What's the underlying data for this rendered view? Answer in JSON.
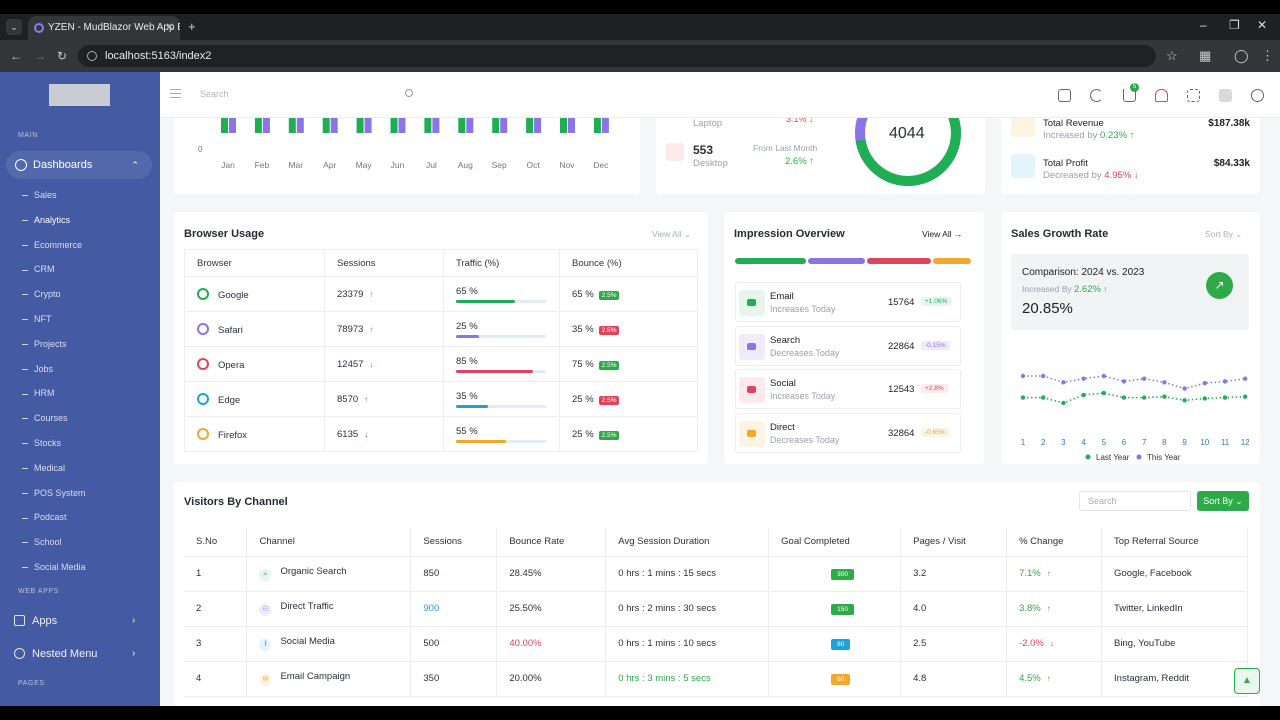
{
  "browser": {
    "tab_title": "YZEN - MudBlazor Web App Bl...",
    "url": "localhost:5163/index2"
  },
  "sidebar": {
    "section_main": "MAIN",
    "dashboards_label": "Dashboards",
    "items": [
      "Sales",
      "Analytics",
      "Ecommerce",
      "CRM",
      "Crypto",
      "NFT",
      "Projects",
      "Jobs",
      "HRM",
      "Courses",
      "Stocks",
      "Medical",
      "POS System",
      "Podcast",
      "School",
      "Social Media"
    ],
    "active_item": "Analytics",
    "section_web_apps": "WEB APPS",
    "apps_label": "Apps",
    "nested_menu_label": "Nested Menu",
    "section_pages": "PAGES"
  },
  "topbar": {
    "search_placeholder": "Search",
    "cart_badge": "5"
  },
  "sessions_chart": {
    "months": [
      "Jan",
      "Feb",
      "Mar",
      "Apr",
      "May",
      "Jun",
      "Jul",
      "Aug",
      "Sep",
      "Oct",
      "Nov",
      "Dec"
    ],
    "zero_label": "0",
    "green_series": [
      0.86,
      0.69,
      0.91,
      0.87,
      0.91,
      0.84,
      0.91,
      0.86,
      0.89,
      0.83,
      0.91,
      0.9
    ],
    "purple_series": [
      0.88,
      0.86,
      0.91,
      0.88,
      0.86,
      0.9,
      0.85,
      0.86,
      0.88,
      0.88,
      0.88,
      0.87
    ],
    "green_color": "#1fae54",
    "purple_color": "#8b74e6"
  },
  "device_card": {
    "laptop_label": "Laptop",
    "laptop_change": "3.1%",
    "desktop_value": "553",
    "desktop_label": "Desktop",
    "from_last_month": "From Last Month",
    "desktop_change": "2.6%",
    "donut_value": "4044"
  },
  "revenue_card": {
    "total_revenue_label": "Total Revenue",
    "total_revenue_sub_prefix": "Increased by",
    "total_revenue_change": "0.23%",
    "total_revenue_value": "$187.38k",
    "total_profit_label": "Total Profit",
    "total_profit_sub_prefix": "Decreased by",
    "total_profit_change": "4.95%",
    "total_profit_value": "$84.33k"
  },
  "browser_usage": {
    "title": "Browser Usage",
    "view_all": "View All",
    "headers": [
      "Browser",
      "Sessions",
      "Traffic (%)",
      "Bounce (%)"
    ],
    "rows": [
      {
        "name": "Google",
        "sessions": "23379",
        "trend": "up",
        "traffic": "65 %",
        "traffic_fill": 0.65,
        "bar_color": "#1fae54",
        "bounce": "65 %",
        "badge": "2.5%",
        "badge_color": "#2eaa49",
        "icon_color": "#1fae54"
      },
      {
        "name": "Safari",
        "sessions": "78973",
        "trend": "up",
        "traffic": "25 %",
        "traffic_fill": 0.25,
        "bar_color": "#8b74e6",
        "bounce": "35 %",
        "badge": "2.5%",
        "badge_color": "#e0445a",
        "icon_color": "#8b74e6"
      },
      {
        "name": "Opera",
        "sessions": "12457",
        "trend": "down",
        "traffic": "85 %",
        "traffic_fill": 0.85,
        "bar_color": "#e0445a",
        "bounce": "75 %",
        "badge": "2.5%",
        "badge_color": "#2eaa49",
        "icon_color": "#e0445a"
      },
      {
        "name": "Edge",
        "sessions": "8570",
        "trend": "up",
        "traffic": "35 %",
        "traffic_fill": 0.35,
        "bar_color": "#1da1d6",
        "bounce": "25 %",
        "badge": "2.5%",
        "badge_color": "#e0445a",
        "icon_color": "#1da1d6"
      },
      {
        "name": "Firefox",
        "sessions": "6135",
        "trend": "down",
        "traffic": "55 %",
        "traffic_fill": 0.55,
        "bar_color": "#f0a92c",
        "bounce": "25 %",
        "badge": "2.5%",
        "badge_color": "#2eaa49",
        "icon_color": "#f0a92c"
      }
    ]
  },
  "impression": {
    "title": "Impression Overview",
    "view_all": "View All",
    "rows": [
      {
        "name": "Email",
        "sub": "Increases Today",
        "value": "15764",
        "change": "+1.06%",
        "bg": "#e6f6ec",
        "fg": "#1fae54"
      },
      {
        "name": "Search",
        "sub": "Decreases Today",
        "value": "22864",
        "change": "-0.15%",
        "bg": "#efebfc",
        "fg": "#8b74e6"
      },
      {
        "name": "Social",
        "sub": "Increases Today",
        "value": "12543",
        "change": "+2.8%",
        "bg": "#fdeaed",
        "fg": "#e0445a"
      },
      {
        "name": "Direct",
        "sub": "Decreases Today",
        "value": "32864",
        "change": "-0.65%",
        "bg": "#fdf4e3",
        "fg": "#f0a92c"
      }
    ]
  },
  "sales_growth": {
    "title": "Sales Growth Rate",
    "sort_by": "Sort By",
    "comparison": "Comparison: 2024 vs. 2023",
    "increased_by": "Increased By",
    "increase_value": "2.62%",
    "rate": "20.85%",
    "legend_last_year": "Last Year",
    "legend_this_year": "This Year"
  },
  "chart_data": {
    "type": "line",
    "x": [
      1,
      2,
      3,
      4,
      5,
      6,
      7,
      8,
      9,
      10,
      11,
      12
    ],
    "series": [
      {
        "name": "Last Year",
        "color": "#1fae54",
        "values": [
          0.36,
          0.36,
          0.3,
          0.39,
          0.41,
          0.36,
          0.36,
          0.37,
          0.33,
          0.35,
          0.36,
          0.37
        ]
      },
      {
        "name": "This Year",
        "color": "#8b74e6",
        "values": [
          0.6,
          0.6,
          0.53,
          0.57,
          0.6,
          0.54,
          0.57,
          0.53,
          0.46,
          0.52,
          0.54,
          0.57
        ]
      }
    ]
  },
  "visitors": {
    "title": "Visitors By Channel",
    "search_placeholder": "Search",
    "sort_by": "Sort By",
    "headers": [
      "S.No",
      "Channel",
      "Sessions",
      "Bounce Rate",
      "Avg Session Duration",
      "Goal Completed",
      "Pages / Visit",
      "% Change",
      "Top Referral Source"
    ],
    "rows": [
      {
        "sno": "1",
        "channel": "Organic Search",
        "sessions": "850",
        "bounce": "28.45%",
        "duration": "0 hrs : 1 mins : 15 secs",
        "goal": "300",
        "goal_color": "#2eaa49",
        "pages": "3.2",
        "change": "7.1%",
        "trend": "up",
        "referral": "Google, Facebook",
        "icon_bg": "#e6f6ec",
        "icon_fg": "#1fae54",
        "icon": "⌕"
      },
      {
        "sno": "2",
        "channel": "Direct Traffic",
        "sessions": "900",
        "bounce": "25.50%",
        "duration": "0 hrs : 2 mins : 30 secs",
        "goal": "150",
        "goal_color": "#2eaa49",
        "pages": "4.0",
        "change": "3.8%",
        "trend": "up",
        "referral": "Twitter, LinkedIn",
        "icon_bg": "#efebfc",
        "icon_fg": "#8b74e6",
        "icon": "⚇"
      },
      {
        "sno": "3",
        "channel": "Social Media",
        "sessions": "500",
        "bounce": "40.00%",
        "duration": "0 hrs : 1 mins : 10 secs",
        "goal": "80",
        "goal_color": "#1da1d6",
        "pages": "2.5",
        "change": "-2.0%",
        "trend": "down",
        "referral": "Bing, YouTube",
        "icon_bg": "#e4f4fb",
        "icon_fg": "#1da1d6",
        "icon": "f"
      },
      {
        "sno": "4",
        "channel": "Email Campaign",
        "sessions": "350",
        "bounce": "20.00%",
        "duration": "0 hrs : 3 mins : 5 secs",
        "goal": "60",
        "goal_color": "#f0a92c",
        "pages": "4.8",
        "change": "4.5%",
        "trend": "up",
        "referral": "Instagram, Reddit",
        "icon_bg": "#fdf4e3",
        "icon_fg": "#f0a92c",
        "icon": "✉"
      }
    ]
  }
}
